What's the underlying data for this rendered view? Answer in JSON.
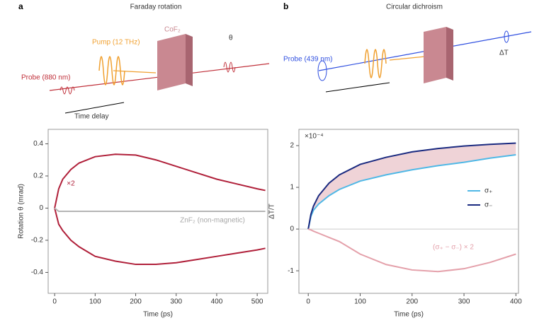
{
  "panels": [
    {
      "label": "a",
      "title": "Faraday rotation",
      "texts": [
        "Probe (880 nm)",
        "Pump (12 THz)",
        "CoF₂",
        "θ",
        "Time delay"
      ]
    },
    {
      "label": "b",
      "title": "Circular dichroism",
      "texts": [
        "Probe (439 nm)",
        "ΔT"
      ]
    }
  ],
  "chart_data": [
    {
      "type": "line",
      "xlabel": "Time (ps)",
      "ylabel": "Rotation θ (mrad)",
      "xlim": [
        -16,
        526
      ],
      "ylim": [
        -0.53,
        0.49
      ],
      "xticks": [
        0,
        100,
        200,
        300,
        400,
        500
      ],
      "yticks": [
        -0.4,
        -0.2,
        0,
        0.2,
        0.4
      ],
      "x": [
        0,
        10,
        20,
        40,
        60,
        100,
        150,
        200,
        250,
        300,
        350,
        400,
        450,
        500,
        520
      ],
      "series": [
        {
          "color": "#b0203a",
          "values": [
            0,
            0.12,
            0.18,
            0.24,
            0.28,
            0.32,
            0.335,
            0.33,
            0.3,
            0.26,
            0.22,
            0.18,
            0.15,
            0.12,
            0.11
          ]
        },
        {
          "color": "#b0203a",
          "values": [
            0,
            -0.1,
            -0.14,
            -0.2,
            -0.24,
            -0.3,
            -0.33,
            -0.35,
            -0.35,
            -0.34,
            -0.32,
            -0.3,
            -0.28,
            -0.26,
            -0.25
          ]
        },
        {
          "color": "#b5b5b5",
          "values": [
            0,
            -0.02,
            -0.02,
            -0.02,
            -0.02,
            -0.02,
            -0.02,
            -0.02,
            -0.02,
            -0.02,
            -0.02,
            -0.02,
            -0.02,
            -0.02,
            -0.02
          ]
        }
      ],
      "annotations": [
        {
          "text": "×2",
          "color": "#b0203a"
        },
        {
          "text": "ZnF₂ (non-magnetic)",
          "color": "#a8a8a8"
        }
      ]
    },
    {
      "type": "line",
      "xlabel": "Time (ps)",
      "ylabel": "ΔT/T",
      "y_multiplier": "×10⁻⁴",
      "xlim": [
        -18,
        405
      ],
      "ylim": [
        -1.54,
        2.39
      ],
      "xticks": [
        0,
        100,
        200,
        300,
        400
      ],
      "yticks": [
        -1,
        0,
        1,
        2
      ],
      "zero_line": true,
      "fill_between": "#e8c0c6",
      "x": [
        0,
        5,
        10,
        20,
        40,
        60,
        100,
        150,
        200,
        250,
        300,
        350,
        400
      ],
      "series": [
        {
          "name": "σ₊",
          "color": "#4fb8e6",
          "values": [
            0,
            0.3,
            0.45,
            0.6,
            0.8,
            0.95,
            1.15,
            1.3,
            1.42,
            1.52,
            1.6,
            1.7,
            1.78
          ]
        },
        {
          "name": "σ₋",
          "color": "#1a2a80",
          "values": [
            0,
            0.35,
            0.55,
            0.8,
            1.1,
            1.3,
            1.55,
            1.72,
            1.85,
            1.93,
            1.99,
            2.03,
            2.06
          ]
        },
        {
          "color": "#e4a0aa",
          "values": [
            0,
            -0.02,
            -0.05,
            -0.1,
            -0.2,
            -0.3,
            -0.6,
            -0.85,
            -0.98,
            -1.02,
            -0.95,
            -0.8,
            -0.6
          ]
        }
      ],
      "legend": "right",
      "annotations": [
        {
          "text": "(σ₊ − σ₋) × 2",
          "color": "#e4a0aa"
        }
      ]
    }
  ]
}
